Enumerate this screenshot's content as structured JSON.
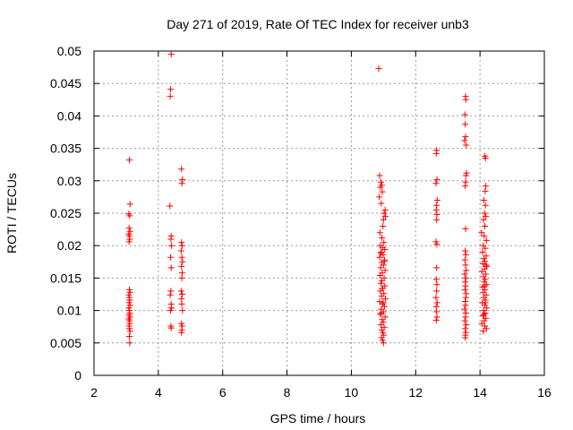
{
  "chart_data": {
    "type": "scatter",
    "title": "Day 271 of 2019, Rate Of TEC Index for receiver unb3",
    "xlabel": "GPS time / hours",
    "ylabel": "ROTI / TECUs",
    "xlim": [
      2,
      16
    ],
    "ylim": [
      0,
      0.05
    ],
    "xticks": [
      "2",
      "4",
      "6",
      "8",
      "10",
      "12",
      "14",
      "16"
    ],
    "yticks": [
      "0",
      "0.005",
      "0.01",
      "0.015",
      "0.02",
      "0.025",
      "0.03",
      "0.035",
      "0.04",
      "0.045",
      "0.05"
    ],
    "grid": true,
    "marker": "+",
    "color": "#ff0000",
    "series": [
      {
        "name": "ROTI",
        "points": [
          [
            3.1,
            0.0332
          ],
          [
            3.12,
            0.0264
          ],
          [
            3.08,
            0.0249
          ],
          [
            3.11,
            0.0246
          ],
          [
            3.09,
            0.0227
          ],
          [
            3.12,
            0.0222
          ],
          [
            3.08,
            0.0218
          ],
          [
            3.1,
            0.0215
          ],
          [
            3.11,
            0.021
          ],
          [
            3.09,
            0.0206
          ],
          [
            3.1,
            0.0132
          ],
          [
            3.12,
            0.0128
          ],
          [
            3.08,
            0.0124
          ],
          [
            3.1,
            0.012
          ],
          [
            3.11,
            0.0116
          ],
          [
            3.09,
            0.0112
          ],
          [
            3.12,
            0.0108
          ],
          [
            3.08,
            0.0104
          ],
          [
            3.1,
            0.01
          ],
          [
            3.11,
            0.0096
          ],
          [
            3.09,
            0.0093
          ],
          [
            3.12,
            0.009
          ],
          [
            3.08,
            0.0087
          ],
          [
            3.1,
            0.0084
          ],
          [
            3.11,
            0.008
          ],
          [
            3.09,
            0.0076
          ],
          [
            3.1,
            0.0072
          ],
          [
            3.12,
            0.0068
          ],
          [
            3.1,
            0.006
          ],
          [
            3.11,
            0.005
          ],
          [
            4.4,
            0.0495
          ],
          [
            4.38,
            0.0441
          ],
          [
            4.37,
            0.043
          ],
          [
            4.36,
            0.0261
          ],
          [
            4.4,
            0.0215
          ],
          [
            4.39,
            0.021
          ],
          [
            4.41,
            0.02
          ],
          [
            4.38,
            0.0182
          ],
          [
            4.4,
            0.0166
          ],
          [
            4.39,
            0.013
          ],
          [
            4.37,
            0.0124
          ],
          [
            4.4,
            0.011
          ],
          [
            4.41,
            0.0104
          ],
          [
            4.38,
            0.01
          ],
          [
            4.39,
            0.0076
          ],
          [
            4.4,
            0.0073
          ],
          [
            4.72,
            0.0318
          ],
          [
            4.75,
            0.0302
          ],
          [
            4.73,
            0.0296
          ],
          [
            4.72,
            0.0205
          ],
          [
            4.74,
            0.02
          ],
          [
            4.71,
            0.0192
          ],
          [
            4.73,
            0.0182
          ],
          [
            4.75,
            0.0175
          ],
          [
            4.72,
            0.0168
          ],
          [
            4.74,
            0.0158
          ],
          [
            4.73,
            0.015
          ],
          [
            4.71,
            0.013
          ],
          [
            4.74,
            0.0125
          ],
          [
            4.72,
            0.0118
          ],
          [
            4.73,
            0.011
          ],
          [
            4.75,
            0.01
          ],
          [
            4.72,
            0.008
          ],
          [
            4.74,
            0.0076
          ],
          [
            4.73,
            0.007
          ],
          [
            4.72,
            0.0066
          ],
          [
            10.85,
            0.0473
          ],
          [
            10.88,
            0.0308
          ],
          [
            10.92,
            0.0298
          ],
          [
            10.95,
            0.0293
          ],
          [
            10.9,
            0.029
          ],
          [
            10.96,
            0.0283
          ],
          [
            10.87,
            0.0275
          ],
          [
            10.93,
            0.0265
          ],
          [
            11.05,
            0.0255
          ],
          [
            11.02,
            0.025
          ],
          [
            11.06,
            0.0245
          ],
          [
            11.0,
            0.024
          ],
          [
            10.98,
            0.023
          ],
          [
            10.89,
            0.022
          ],
          [
            10.95,
            0.0212
          ],
          [
            11.01,
            0.0205
          ],
          [
            10.9,
            0.02
          ],
          [
            10.97,
            0.0197
          ],
          [
            11.04,
            0.0194
          ],
          [
            10.93,
            0.019
          ],
          [
            10.99,
            0.0186
          ],
          [
            10.88,
            0.0182
          ],
          [
            11.03,
            0.0178
          ],
          [
            10.94,
            0.0174
          ],
          [
            11.0,
            0.017
          ],
          [
            10.91,
            0.0166
          ],
          [
            11.05,
            0.0162
          ],
          [
            10.96,
            0.0158
          ],
          [
            10.89,
            0.0154
          ],
          [
            11.02,
            0.015
          ],
          [
            10.95,
            0.0146
          ],
          [
            10.92,
            0.0142
          ],
          [
            11.04,
            0.0138
          ],
          [
            10.98,
            0.0134
          ],
          [
            10.9,
            0.013
          ],
          [
            11.01,
            0.0126
          ],
          [
            10.94,
            0.0122
          ],
          [
            11.06,
            0.0118
          ],
          [
            10.88,
            0.0114
          ],
          [
            10.97,
            0.011
          ],
          [
            11.03,
            0.0106
          ],
          [
            10.93,
            0.0102
          ],
          [
            11.0,
            0.0098
          ],
          [
            10.9,
            0.0094
          ],
          [
            11.05,
            0.009
          ],
          [
            10.96,
            0.0086
          ],
          [
            10.99,
            0.0082
          ],
          [
            10.92,
            0.0078
          ],
          [
            11.02,
            0.0074
          ],
          [
            10.95,
            0.007
          ],
          [
            10.98,
            0.0066
          ],
          [
            11.01,
            0.0062
          ],
          [
            10.94,
            0.0058
          ],
          [
            10.97,
            0.0054
          ],
          [
            11.0,
            0.005
          ],
          [
            10.91,
            0.0188
          ],
          [
            11.03,
            0.0176
          ],
          [
            10.96,
            0.0134
          ],
          [
            10.99,
            0.0112
          ],
          [
            10.93,
            0.0096
          ],
          [
            12.65,
            0.0347
          ],
          [
            12.64,
            0.0342
          ],
          [
            12.66,
            0.0302
          ],
          [
            12.63,
            0.0296
          ],
          [
            12.67,
            0.027
          ],
          [
            12.65,
            0.0262
          ],
          [
            12.64,
            0.0255
          ],
          [
            12.66,
            0.0248
          ],
          [
            12.65,
            0.024
          ],
          [
            12.63,
            0.0206
          ],
          [
            12.66,
            0.0202
          ],
          [
            12.65,
            0.0166
          ],
          [
            12.64,
            0.0148
          ],
          [
            12.66,
            0.014
          ],
          [
            12.65,
            0.013
          ],
          [
            12.63,
            0.012
          ],
          [
            12.67,
            0.0112
          ],
          [
            12.64,
            0.0106
          ],
          [
            12.65,
            0.0098
          ],
          [
            12.66,
            0.009
          ],
          [
            12.64,
            0.0085
          ],
          [
            13.55,
            0.043
          ],
          [
            13.56,
            0.0425
          ],
          [
            13.53,
            0.0402
          ],
          [
            13.54,
            0.0387
          ],
          [
            13.55,
            0.0368
          ],
          [
            13.52,
            0.0362
          ],
          [
            13.57,
            0.0355
          ],
          [
            13.58,
            0.0312
          ],
          [
            13.56,
            0.0308
          ],
          [
            13.55,
            0.0298
          ],
          [
            13.54,
            0.0292
          ],
          [
            13.55,
            0.0226
          ],
          [
            13.54,
            0.0192
          ],
          [
            13.56,
            0.0186
          ],
          [
            13.53,
            0.0178
          ],
          [
            13.55,
            0.017
          ],
          [
            13.57,
            0.0162
          ],
          [
            13.52,
            0.0156
          ],
          [
            13.56,
            0.015
          ],
          [
            13.54,
            0.0144
          ],
          [
            13.55,
            0.0138
          ],
          [
            13.53,
            0.0132
          ],
          [
            13.57,
            0.0126
          ],
          [
            13.56,
            0.012
          ],
          [
            13.54,
            0.0114
          ],
          [
            13.55,
            0.0108
          ],
          [
            13.52,
            0.0102
          ],
          [
            13.56,
            0.0096
          ],
          [
            13.55,
            0.009
          ],
          [
            13.53,
            0.0084
          ],
          [
            13.57,
            0.0078
          ],
          [
            13.54,
            0.0072
          ],
          [
            13.56,
            0.0066
          ],
          [
            13.55,
            0.0062
          ],
          [
            13.54,
            0.0058
          ],
          [
            14.15,
            0.0338
          ],
          [
            14.17,
            0.0335
          ],
          [
            14.18,
            0.0292
          ],
          [
            14.16,
            0.0284
          ],
          [
            14.12,
            0.027
          ],
          [
            14.17,
            0.0262
          ],
          [
            14.14,
            0.025
          ],
          [
            14.18,
            0.0245
          ],
          [
            14.11,
            0.024
          ],
          [
            14.15,
            0.023
          ],
          [
            14.05,
            0.022
          ],
          [
            14.13,
            0.0215
          ],
          [
            14.2,
            0.0208
          ],
          [
            14.1,
            0.02
          ],
          [
            14.16,
            0.0196
          ],
          [
            14.08,
            0.019
          ],
          [
            14.19,
            0.0184
          ],
          [
            14.12,
            0.018
          ],
          [
            14.15,
            0.0176
          ],
          [
            14.09,
            0.0172
          ],
          [
            14.21,
            0.0168
          ],
          [
            14.14,
            0.0164
          ],
          [
            14.06,
            0.016
          ],
          [
            14.18,
            0.0156
          ],
          [
            14.11,
            0.0152
          ],
          [
            14.16,
            0.0148
          ],
          [
            14.13,
            0.0144
          ],
          [
            14.2,
            0.014
          ],
          [
            14.08,
            0.0136
          ],
          [
            14.15,
            0.0132
          ],
          [
            14.1,
            0.0128
          ],
          [
            14.19,
            0.0124
          ],
          [
            14.12,
            0.012
          ],
          [
            14.17,
            0.0116
          ],
          [
            14.07,
            0.0112
          ],
          [
            14.14,
            0.0108
          ],
          [
            14.21,
            0.0104
          ],
          [
            14.11,
            0.01
          ],
          [
            14.16,
            0.0096
          ],
          [
            14.09,
            0.0092
          ],
          [
            14.18,
            0.0088
          ],
          [
            14.13,
            0.0084
          ],
          [
            14.06,
            0.008
          ],
          [
            14.15,
            0.0076
          ],
          [
            14.2,
            0.0072
          ],
          [
            14.1,
            0.0068
          ],
          [
            14.14,
            0.0138
          ],
          [
            14.17,
            0.0112
          ],
          [
            14.12,
            0.0094
          ],
          [
            14.19,
            0.017
          ]
        ]
      }
    ]
  }
}
